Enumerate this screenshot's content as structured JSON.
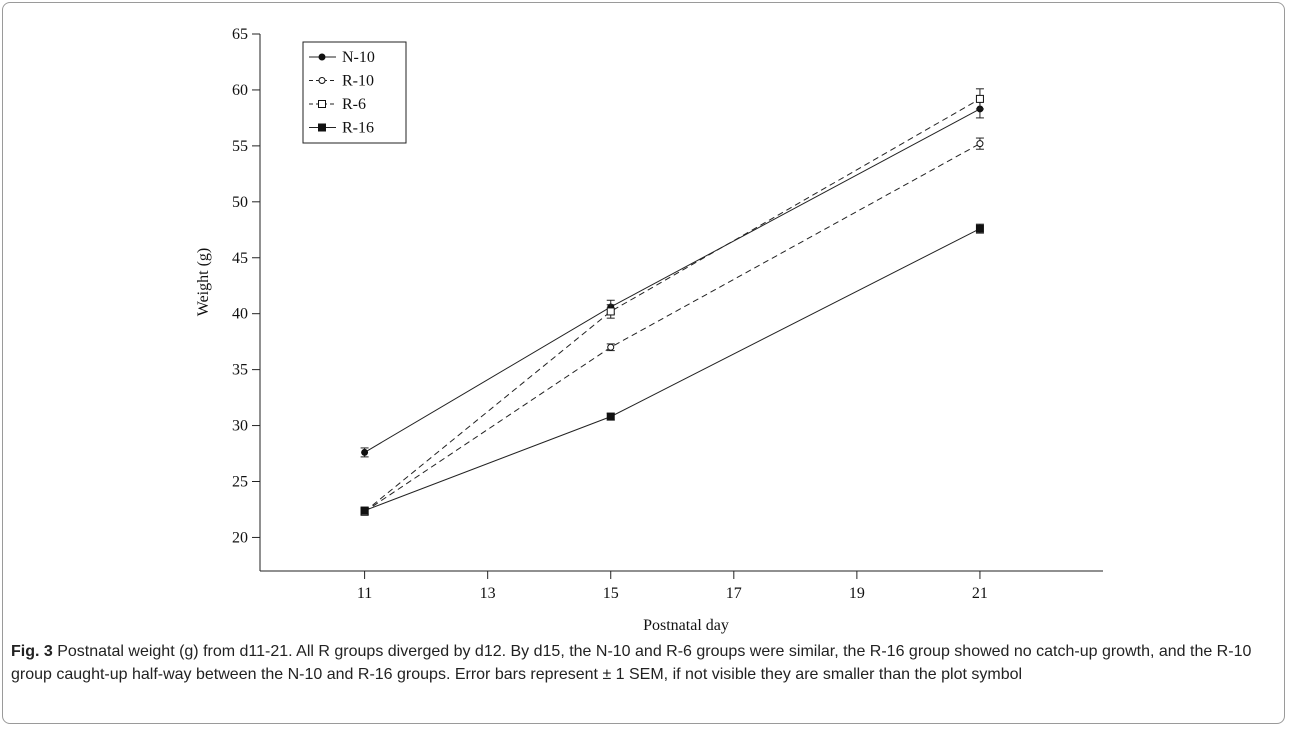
{
  "chart_data": {
    "type": "line",
    "xlabel": "Postnatal day",
    "ylabel": "Weight (g)",
    "xlim": [
      9.3,
      23.0
    ],
    "ylim": [
      17.0,
      65.0
    ],
    "xticks": [
      11,
      13,
      15,
      17,
      19,
      21
    ],
    "yticks": [
      20,
      25,
      30,
      35,
      40,
      45,
      50,
      55,
      60,
      65
    ],
    "grid": false,
    "legend_position": "top-left",
    "x": [
      11,
      15,
      21
    ],
    "series": [
      {
        "name": "N-10",
        "values": [
          27.6,
          40.6,
          58.3
        ],
        "errors": [
          0.4,
          0.6,
          0.8
        ],
        "marker": "filled-circle",
        "linestyle": "solid"
      },
      {
        "name": "R-10",
        "values": [
          22.3,
          37.0,
          55.2
        ],
        "errors": [
          0.3,
          0.3,
          0.5
        ],
        "marker": "open-circle",
        "linestyle": "dashed"
      },
      {
        "name": "R-6",
        "values": [
          22.3,
          40.2,
          59.2
        ],
        "errors": [
          0.3,
          0.6,
          0.9
        ],
        "marker": "open-square",
        "linestyle": "dashed"
      },
      {
        "name": "R-16",
        "values": [
          22.4,
          30.8,
          47.6
        ],
        "errors": [
          0.3,
          0.3,
          0.4
        ],
        "marker": "filled-square",
        "linestyle": "solid"
      }
    ]
  },
  "caption": {
    "label": "Fig. 3",
    "text": " Postnatal weight (g) from d11-21. All R groups diverged by d12. By d15, the N-10 and R-6 groups were similar, the R-16 group showed no catch-up growth, and the R-10 group caught-up half-way between the N-10 and R-16 groups. Error bars represent ± 1 SEM, if not visible they are smaller than the plot symbol"
  }
}
